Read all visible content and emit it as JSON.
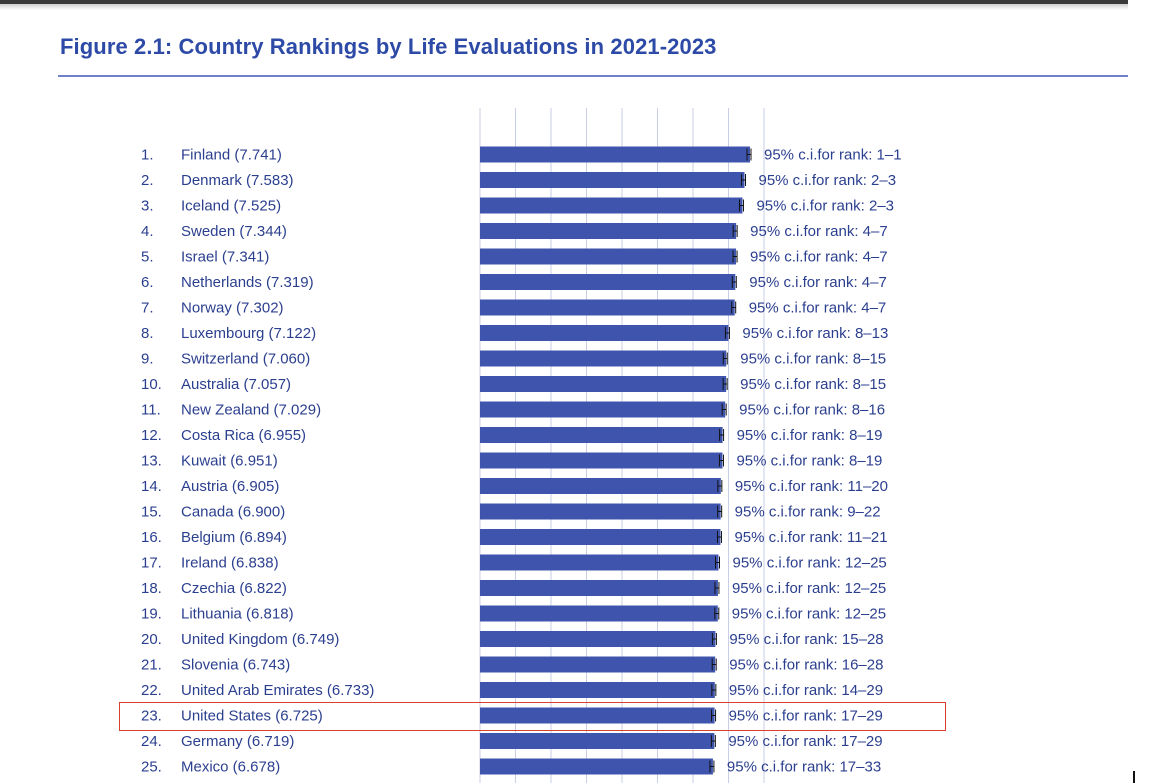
{
  "page": {
    "title": "Figure 2.1: Country Rankings by Life Evaluations in 2021-2023",
    "ci_prefix": "95% c.i.for rank: "
  },
  "colors": {
    "title": "#2d4aa6",
    "text": "#2b3f8f",
    "bar": "#3f55ad",
    "grid": "#c9cde6",
    "highlight_box": "#d9402e"
  },
  "chart_data": {
    "type": "bar",
    "orientation": "horizontal",
    "title": "Figure 2.1: Country Rankings by Life Evaluations in 2021-2023",
    "xlabel": "",
    "ylabel": "",
    "xlim": [
      0,
      7.741
    ],
    "grid": "vertical",
    "highlighted_rank": 23,
    "categories": [
      "1. Finland (7.741)",
      "2. Denmark (7.583)",
      "3. Iceland (7.525)",
      "4. Sweden (7.344)",
      "5. Israel (7.341)",
      "6. Netherlands (7.319)",
      "7. Norway (7.302)",
      "8. Luxembourg (7.122)",
      "9. Switzerland (7.060)",
      "10. Australia (7.057)",
      "11. New Zealand (7.029)",
      "12. Costa Rica (6.955)",
      "13. Kuwait (6.951)",
      "14. Austria (6.905)",
      "15. Canada (6.900)",
      "16. Belgium (6.894)",
      "17. Ireland (6.838)",
      "18. Czechia (6.822)",
      "19. Lithuania (6.818)",
      "20. United Kingdom (6.749)",
      "21. Slovenia (6.743)",
      "22. United Arab Emirates (6.733)",
      "23. United States (6.725)",
      "24. Germany (6.719)",
      "25. Mexico (6.678)"
    ],
    "values": [
      7.741,
      7.583,
      7.525,
      7.344,
      7.341,
      7.319,
      7.302,
      7.122,
      7.06,
      7.057,
      7.029,
      6.955,
      6.951,
      6.905,
      6.9,
      6.894,
      6.838,
      6.822,
      6.818,
      6.749,
      6.743,
      6.733,
      6.725,
      6.719,
      6.678
    ],
    "rows": [
      {
        "rank": "1.",
        "country": "Finland (7.741)",
        "value": 7.741,
        "ci": "1–1"
      },
      {
        "rank": "2.",
        "country": "Denmark (7.583)",
        "value": 7.583,
        "ci": "2–3"
      },
      {
        "rank": "3.",
        "country": "Iceland (7.525)",
        "value": 7.525,
        "ci": "2–3"
      },
      {
        "rank": "4.",
        "country": "Sweden (7.344)",
        "value": 7.344,
        "ci": "4–7"
      },
      {
        "rank": "5.",
        "country": "Israel (7.341)",
        "value": 7.341,
        "ci": "4–7"
      },
      {
        "rank": "6.",
        "country": "Netherlands (7.319)",
        "value": 7.319,
        "ci": "4–7"
      },
      {
        "rank": "7.",
        "country": "Norway (7.302)",
        "value": 7.302,
        "ci": "4–7"
      },
      {
        "rank": "8.",
        "country": "Luxembourg (7.122)",
        "value": 7.122,
        "ci": "8–13"
      },
      {
        "rank": "9.",
        "country": "Switzerland (7.060)",
        "value": 7.06,
        "ci": "8–15"
      },
      {
        "rank": "10.",
        "country": "Australia (7.057)",
        "value": 7.057,
        "ci": "8–15"
      },
      {
        "rank": "11.",
        "country": "New Zealand (7.029)",
        "value": 7.029,
        "ci": "8–16"
      },
      {
        "rank": "12.",
        "country": "Costa Rica (6.955)",
        "value": 6.955,
        "ci": "8–19"
      },
      {
        "rank": "13.",
        "country": "Kuwait (6.951)",
        "value": 6.951,
        "ci": "8–19"
      },
      {
        "rank": "14.",
        "country": "Austria (6.905)",
        "value": 6.905,
        "ci": "11–20"
      },
      {
        "rank": "15.",
        "country": "Canada (6.900)",
        "value": 6.9,
        "ci": "9–22"
      },
      {
        "rank": "16.",
        "country": "Belgium (6.894)",
        "value": 6.894,
        "ci": "11–21"
      },
      {
        "rank": "17.",
        "country": "Ireland (6.838)",
        "value": 6.838,
        "ci": "12–25"
      },
      {
        "rank": "18.",
        "country": "Czechia (6.822)",
        "value": 6.822,
        "ci": "12–25"
      },
      {
        "rank": "19.",
        "country": "Lithuania (6.818)",
        "value": 6.818,
        "ci": "12–25"
      },
      {
        "rank": "20.",
        "country": "United Kingdom (6.749)",
        "value": 6.749,
        "ci": "15–28"
      },
      {
        "rank": "21.",
        "country": "Slovenia (6.743)",
        "value": 6.743,
        "ci": "16–28"
      },
      {
        "rank": "22.",
        "country": "United Arab Emirates (6.733)",
        "value": 6.733,
        "ci": "14–29"
      },
      {
        "rank": "23.",
        "country": "United States (6.725)",
        "value": 6.725,
        "ci": "17–29"
      },
      {
        "rank": "24.",
        "country": "Germany (6.719)",
        "value": 6.719,
        "ci": "17–29"
      },
      {
        "rank": "25.",
        "country": "Mexico (6.678)",
        "value": 6.678,
        "ci": "17–33"
      }
    ]
  }
}
